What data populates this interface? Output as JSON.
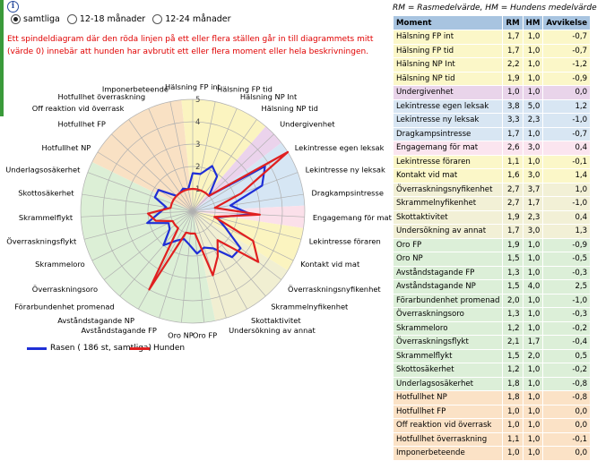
{
  "header": {
    "info_icon": "i",
    "abbreviations": "RM = Rasmedelvärde,    HM = Hundens medelvärde"
  },
  "filters": [
    {
      "label": "samtliga",
      "selected": true
    },
    {
      "label": "12-18 månader",
      "selected": false
    },
    {
      "label": "12-24 månader",
      "selected": false
    }
  ],
  "note": "Ett spindeldiagram där den röda linjen på ett eller flera ställen går in till diagrammets mitt (värde 0) innebär att hunden har avbrutit ett eller flera moment eller hela beskrivningen.",
  "legend": {
    "breed": "Rasen ( 186 st, samtliga)",
    "dog": "Hunden"
  },
  "colors": {
    "breed": "#1f2fd6",
    "dog": "#e02020"
  },
  "table": {
    "headers": [
      "Moment",
      "RM",
      "HM",
      "Avvikelse"
    ],
    "rows": [
      {
        "moment": "Hälsning FP int",
        "rm": "1,7",
        "hm": "1,0",
        "avv": "-0,7",
        "bg": "#fbf7c8"
      },
      {
        "moment": "Hälsning FP tid",
        "rm": "1,7",
        "hm": "1,0",
        "avv": "-0,7",
        "bg": "#fbf7c8"
      },
      {
        "moment": "Hälsning NP Int",
        "rm": "2,2",
        "hm": "1,0",
        "avv": "-1,2",
        "bg": "#fbf7c8"
      },
      {
        "moment": "Hälsning NP tid",
        "rm": "1,9",
        "hm": "1,0",
        "avv": "-0,9",
        "bg": "#fbf7c8"
      },
      {
        "moment": "Undergivenhet",
        "rm": "1,0",
        "hm": "1,0",
        "avv": "0,0",
        "bg": "#e9d4ea"
      },
      {
        "moment": "Lekintresse egen leksak",
        "rm": "3,8",
        "hm": "5,0",
        "avv": "1,2",
        "bg": "#d8e6f3"
      },
      {
        "moment": "Lekintresse ny leksak",
        "rm": "3,3",
        "hm": "2,3",
        "avv": "-1,0",
        "bg": "#d8e6f3"
      },
      {
        "moment": "Dragkampsintresse",
        "rm": "1,7",
        "hm": "1,0",
        "avv": "-0,7",
        "bg": "#d8e6f3"
      },
      {
        "moment": "Engagemang för mat",
        "rm": "2,6",
        "hm": "3,0",
        "avv": "0,4",
        "bg": "#fbe5ef"
      },
      {
        "moment": "Lekintresse föraren",
        "rm": "1,1",
        "hm": "1,0",
        "avv": "-0,1",
        "bg": "#fbf7c8"
      },
      {
        "moment": "Kontakt vid mat",
        "rm": "1,6",
        "hm": "3,0",
        "avv": "1,4",
        "bg": "#fbf7c8"
      },
      {
        "moment": "Överraskningsnyfikenhet",
        "rm": "2,7",
        "hm": "3,7",
        "avv": "1,0",
        "bg": "#f2f0d6"
      },
      {
        "moment": "Skrammelnyfikenhet",
        "rm": "2,7",
        "hm": "1,7",
        "avv": "-1,0",
        "bg": "#f2f0d6"
      },
      {
        "moment": "Skottaktivitet",
        "rm": "1,9",
        "hm": "2,3",
        "avv": "0,4",
        "bg": "#f2f0d6"
      },
      {
        "moment": "Undersökning av annat",
        "rm": "1,7",
        "hm": "3,0",
        "avv": "1,3",
        "bg": "#f2f0d6"
      },
      {
        "moment": "Oro FP",
        "rm": "1,9",
        "hm": "1,0",
        "avv": "-0,9",
        "bg": "#dcefd8"
      },
      {
        "moment": "Oro NP",
        "rm": "1,5",
        "hm": "1,0",
        "avv": "-0,5",
        "bg": "#dcefd8"
      },
      {
        "moment": "Avståndstagande FP",
        "rm": "1,3",
        "hm": "1,0",
        "avv": "-0,3",
        "bg": "#dcefd8"
      },
      {
        "moment": "Avståndstagande NP",
        "rm": "1,5",
        "hm": "4,0",
        "avv": "2,5",
        "bg": "#dcefd8"
      },
      {
        "moment": "Förarbundenhet promenad",
        "rm": "2,0",
        "hm": "1,0",
        "avv": "-1,0",
        "bg": "#dcefd8"
      },
      {
        "moment": "Överraskningsoro",
        "rm": "1,3",
        "hm": "1,0",
        "avv": "-0,3",
        "bg": "#dcefd8"
      },
      {
        "moment": "Skrammeloro",
        "rm": "1,2",
        "hm": "1,0",
        "avv": "-0,2",
        "bg": "#dcefd8"
      },
      {
        "moment": "Överraskningsflykt",
        "rm": "2,1",
        "hm": "1,7",
        "avv": "-0,4",
        "bg": "#dcefd8"
      },
      {
        "moment": "Skrammelflykt",
        "rm": "1,5",
        "hm": "2,0",
        "avv": "0,5",
        "bg": "#dcefd8"
      },
      {
        "moment": "Skottosäkerhet",
        "rm": "1,2",
        "hm": "1,0",
        "avv": "-0,2",
        "bg": "#dcefd8"
      },
      {
        "moment": "Underlagsosäkerhet",
        "rm": "1,8",
        "hm": "1,0",
        "avv": "-0,8",
        "bg": "#dcefd8"
      },
      {
        "moment": "Hotfullhet NP",
        "rm": "1,8",
        "hm": "1,0",
        "avv": "-0,8",
        "bg": "#fbe2c6"
      },
      {
        "moment": "Hotfullhet FP",
        "rm": "1,0",
        "hm": "1,0",
        "avv": "0,0",
        "bg": "#fbe2c6"
      },
      {
        "moment": "Off reaktion vid överrask",
        "rm": "1,0",
        "hm": "1,0",
        "avv": "0,0",
        "bg": "#fbe2c6"
      },
      {
        "moment": "Hotfullhet överraskning",
        "rm": "1,1",
        "hm": "1,0",
        "avv": "-0,1",
        "bg": "#fbe2c6"
      },
      {
        "moment": "Imponerbeteende",
        "rm": "1,0",
        "hm": "1,0",
        "avv": "0,0",
        "bg": "#fbe2c6"
      }
    ]
  },
  "chart_data": {
    "type": "radar",
    "rlim": [
      0,
      5
    ],
    "rticks": [
      "1",
      "2",
      "3",
      "4",
      "5"
    ],
    "categories": [
      "Hälsning FP int",
      "Hälsning FP tid",
      "Hälsning NP Int",
      "Hälsning NP tid",
      "Undergivenhet",
      "Lekintresse egen leksak",
      "Lekintresse ny leksak",
      "Dragkampsintresse",
      "Engagemang för mat",
      "Lekintresse föraren",
      "Kontakt vid mat",
      "Överraskningsnyfikenhet",
      "Skrammelnyfikenhet",
      "Skottaktivitet",
      "Undersökning av annat",
      "Oro FP",
      "Oro NP",
      "Avståndstagande FP",
      "Avståndstagande NP",
      "Förarbundenhet promenad",
      "Överraskningsoro",
      "Skrammeloro",
      "Överraskningsflykt",
      "Skrammelflykt",
      "Skottosäkerhet",
      "Underlagsosäkerhet",
      "Hotfullhet NP",
      "Hotfullhet FP",
      "Off reaktion vid överrask",
      "Hotfullhet överraskning",
      "Imponerbeteende"
    ],
    "series": [
      {
        "name": "Rasen ( 186 st, samtliga)",
        "color": "#1f2fd6",
        "values": [
          1.7,
          1.7,
          2.2,
          1.9,
          1.0,
          3.8,
          3.3,
          1.7,
          2.6,
          1.1,
          1.6,
          2.7,
          2.7,
          1.9,
          1.7,
          1.9,
          1.5,
          1.3,
          1.5,
          2.0,
          1.3,
          1.2,
          2.1,
          1.5,
          1.2,
          1.8,
          1.8,
          1.0,
          1.0,
          1.1,
          1.0
        ]
      },
      {
        "name": "Hunden",
        "color": "#e02020",
        "values": [
          1.0,
          1.0,
          1.0,
          1.0,
          1.0,
          5.0,
          2.3,
          1.0,
          3.0,
          1.0,
          3.0,
          3.7,
          1.7,
          2.3,
          3.0,
          1.0,
          1.0,
          1.0,
          4.0,
          1.0,
          1.0,
          1.0,
          1.7,
          2.0,
          1.0,
          1.0,
          1.0,
          1.0,
          1.0,
          1.0,
          1.0
        ]
      }
    ],
    "sectors": [
      {
        "from": 0,
        "to": 3,
        "color": "#fbf4c0"
      },
      {
        "from": 4,
        "to": 4,
        "color": "#ebd3ec"
      },
      {
        "from": 5,
        "to": 7,
        "color": "#d6e6f4"
      },
      {
        "from": 8,
        "to": 8,
        "color": "#fbe0ea"
      },
      {
        "from": 9,
        "to": 10,
        "color": "#fbf4c0"
      },
      {
        "from": 11,
        "to": 14,
        "color": "#f1efd2"
      },
      {
        "from": 15,
        "to": 25,
        "color": "#dcefd6"
      },
      {
        "from": 26,
        "to": 30,
        "color": "#f9e1c4"
      }
    ]
  }
}
